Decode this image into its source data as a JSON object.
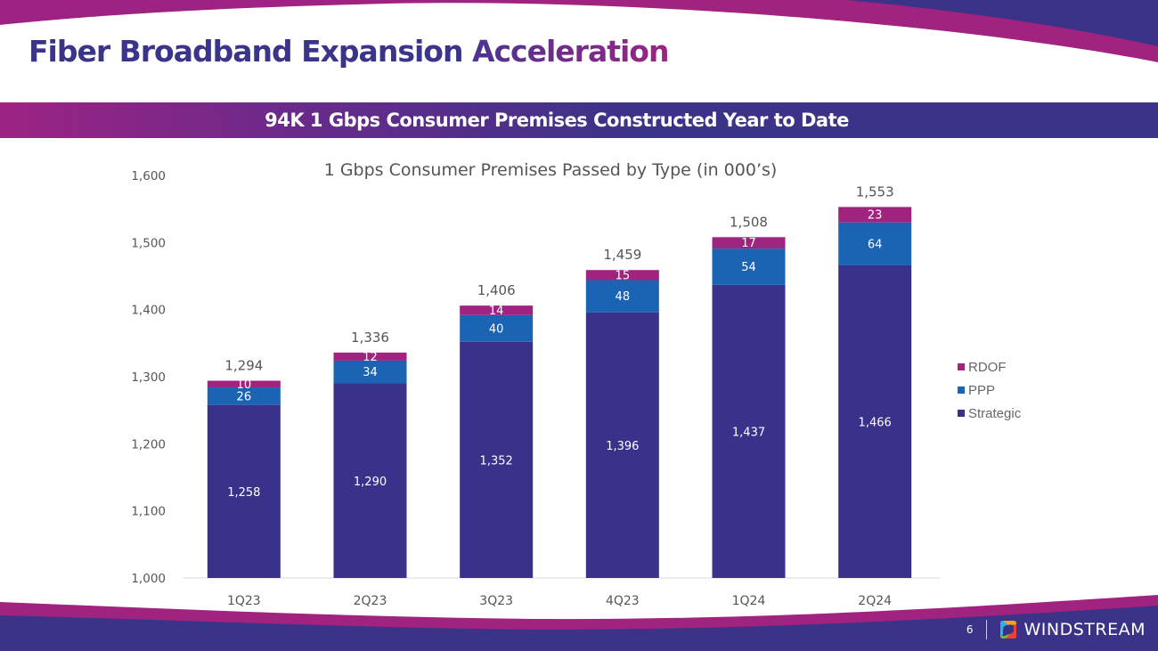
{
  "slide": {
    "title_main": "Fiber Broadband Expansion ",
    "title_accent": "Acceleration",
    "banner": "94K 1 Gbps Consumer Premises Constructed Year to Date",
    "page_number": "6",
    "brand": "WINDSTREAM",
    "brand_icon": "windstream-logo-icon",
    "colors": {
      "navy": "#3b3388",
      "magenta": "#a0237f",
      "strategic": "#3a318a",
      "ppp": "#1b63b3",
      "rdof": "#a0237f"
    }
  },
  "chart_data": {
    "type": "bar",
    "stacked": true,
    "title": "1 Gbps Consumer Premises Passed by Type (in 000’s)",
    "xlabel": "",
    "ylabel": "",
    "ylim": [
      1000,
      1600
    ],
    "yticks": [
      1000,
      1100,
      1200,
      1300,
      1400,
      1500,
      1600
    ],
    "ytick_labels": [
      "1,000",
      "1,100",
      "1,200",
      "1,300",
      "1,400",
      "1,500",
      "1,600"
    ],
    "grid": false,
    "legend_position": "right",
    "categories": [
      "1Q23",
      "2Q23",
      "3Q23",
      "4Q23",
      "1Q24",
      "2Q24"
    ],
    "series": [
      {
        "name": "Strategic",
        "color": "#3a318a",
        "values": [
          1258,
          1290,
          1352,
          1396,
          1437,
          1466
        ],
        "labels": [
          "1,258",
          "1,290",
          "1,352",
          "1,396",
          "1,437",
          "1,466"
        ]
      },
      {
        "name": "PPP",
        "color": "#1b63b3",
        "values": [
          26,
          34,
          40,
          48,
          54,
          64
        ],
        "labels": [
          "26",
          "34",
          "40",
          "48",
          "54",
          "64"
        ]
      },
      {
        "name": "RDOF",
        "color": "#a0237f",
        "values": [
          10,
          12,
          14,
          15,
          17,
          23
        ],
        "labels": [
          "10",
          "12",
          "14",
          "15",
          "17",
          "23"
        ]
      }
    ],
    "totals": [
      1294,
      1336,
      1406,
      1459,
      1508,
      1553
    ],
    "total_labels": [
      "1,294",
      "1,336",
      "1,406",
      "1,459",
      "1,508",
      "1,553"
    ],
    "legend": [
      "RDOF",
      "PPP",
      "Strategic"
    ]
  }
}
